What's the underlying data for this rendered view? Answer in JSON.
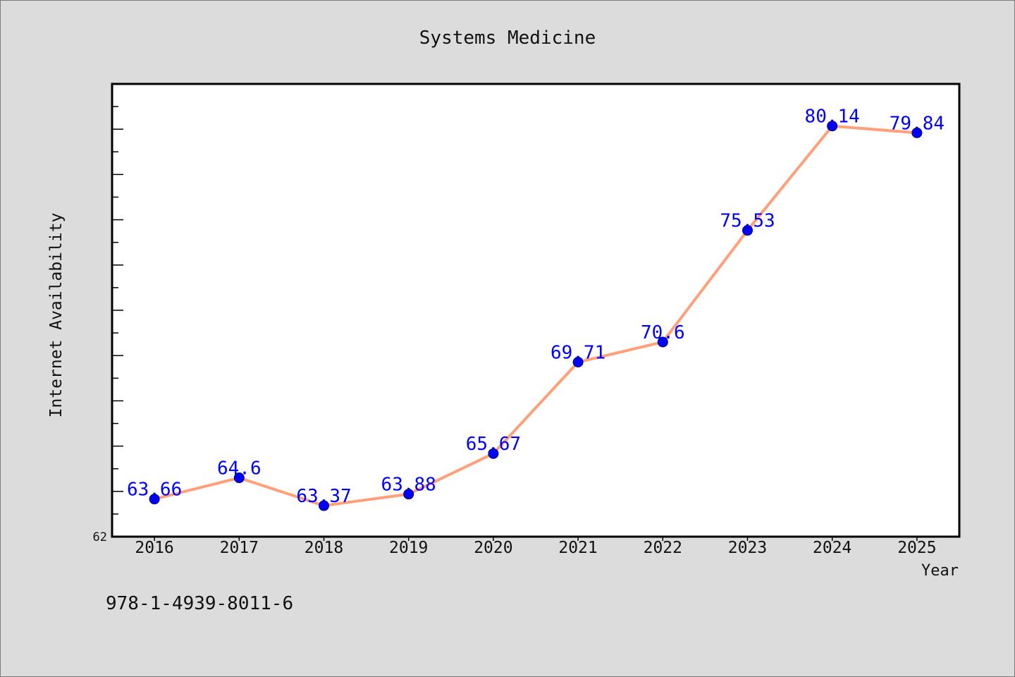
{
  "figure": {
    "background_color": "#dcdcdc",
    "footer_text": "978-1-4939-8011-6"
  },
  "chart_data": {
    "type": "line",
    "title": "Systems Medicine",
    "xlabel": "Year",
    "ylabel": "Internet Availability",
    "categories": [
      "2016",
      "2017",
      "2018",
      "2019",
      "2020",
      "2021",
      "2022",
      "2023",
      "2024",
      "2025"
    ],
    "series": [
      {
        "values": [
          63.66,
          64.6,
          63.37,
          63.88,
          65.67,
          69.71,
          70.6,
          75.53,
          80.14,
          79.84
        ],
        "color": "#ffa07a",
        "marker_color": "#0000ff",
        "data_labels": true
      }
    ],
    "ylim": [
      62,
      82
    ],
    "ytick_labels": [
      "62"
    ],
    "ytick_major_step": 2,
    "ytick_minor_step": 1,
    "grid": false,
    "data_label_color": "#0000ff",
    "plot_background": "#ffffff"
  }
}
